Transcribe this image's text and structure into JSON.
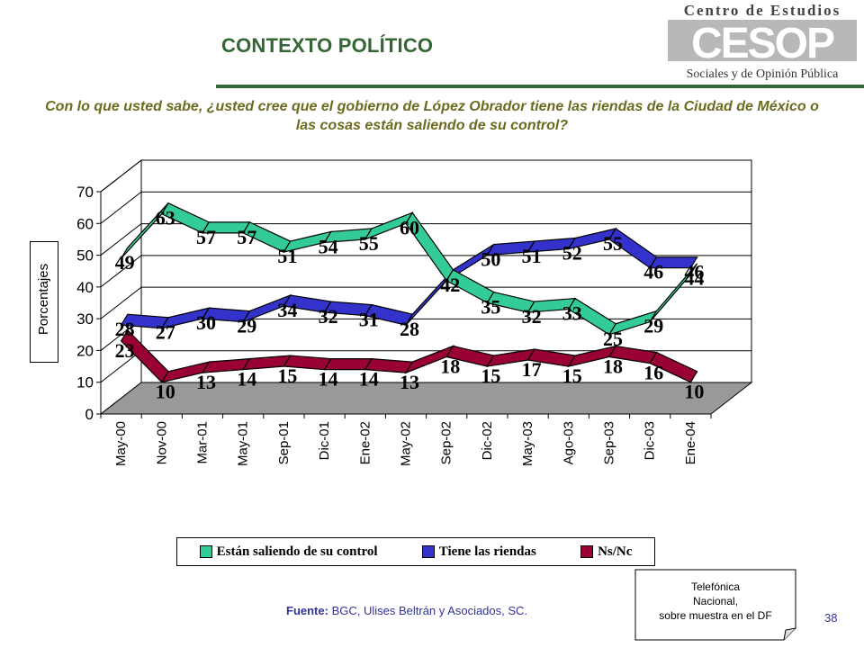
{
  "header": {
    "title": "CONTEXTO POLÍTICO",
    "question": "Con lo que usted sabe, ¿usted cree que el gobierno de López Obrador tiene las riendas de la Ciudad de México o las cosas están saliendo de su control?"
  },
  "logo": {
    "top_text": "Centro de Estudios",
    "mark": "CESOP",
    "bottom_text": "Sociales y de Opinión Pública"
  },
  "chart_data": {
    "type": "line",
    "title": "",
    "xlabel": "",
    "ylabel": "Porcentajes",
    "ylim": [
      0,
      70
    ],
    "yticks": [
      0,
      10,
      20,
      30,
      40,
      50,
      60,
      70
    ],
    "grid": true,
    "legend_position": "bottom",
    "categories": [
      "May-00",
      "Nov-00",
      "Mar-01",
      "May-01",
      "Sep-01",
      "Dic-01",
      "Ene-02",
      "May-02",
      "Sep-02",
      "Dic-02",
      "May-03",
      "Ago-03",
      "Sep-03",
      "Dic-03",
      "Ene-04"
    ],
    "series": [
      {
        "name": "Están saliendo de su control",
        "color": "#33cc99",
        "values": [
          49,
          63,
          57,
          57,
          51,
          54,
          55,
          60,
          42,
          35,
          32,
          33,
          25,
          29,
          44
        ]
      },
      {
        "name": "Tiene las riendas",
        "color": "#3333cc",
        "values": [
          28,
          27,
          30,
          29,
          34,
          32,
          31,
          28,
          42,
          50,
          51,
          52,
          55,
          46,
          46
        ]
      },
      {
        "name": "Ns/Nc",
        "color": "#990033",
        "values": [
          23,
          10,
          13,
          14,
          15,
          14,
          14,
          13,
          18,
          15,
          17,
          15,
          18,
          16,
          10
        ]
      }
    ]
  },
  "footer": {
    "source_label": "Fuente:",
    "source_text": " BGC, Ulises Beltrán y Asociados, SC.",
    "note_lines": [
      "Telefónica",
      "Nacional,",
      "sobre muestra en el DF"
    ],
    "page_number": "38"
  }
}
